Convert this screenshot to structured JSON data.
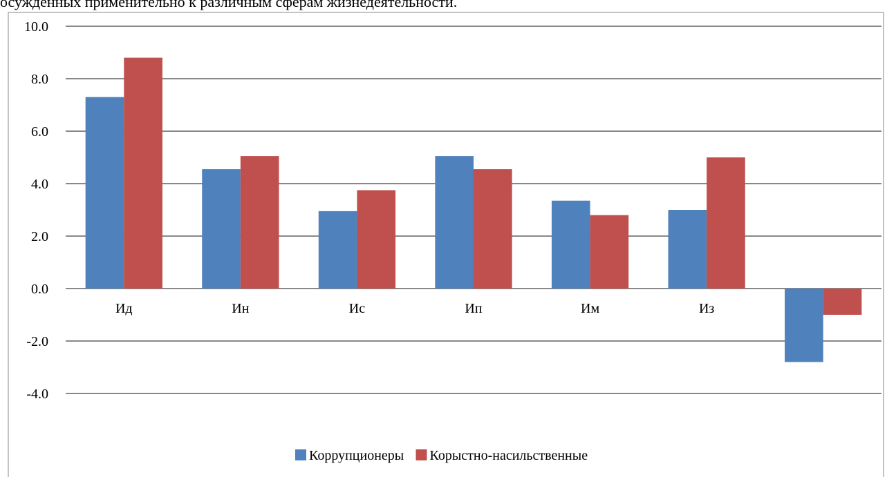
{
  "caption": "осужденных применительно к различным сферам жизнедеятельности.",
  "chart_data": {
    "type": "bar",
    "categories": [
      "Ид",
      "Ин",
      "Ис",
      "Ип",
      "Им",
      "Из",
      null
    ],
    "series": [
      {
        "name": "Коррупционеры",
        "color": "#4f81bd",
        "values": [
          7.3,
          4.55,
          2.95,
          5.05,
          3.35,
          3.0,
          -2.8
        ]
      },
      {
        "name": "Корыстно-насильственные",
        "color": "#c0504d",
        "values": [
          8.8,
          5.05,
          3.75,
          4.55,
          2.8,
          5.0,
          -1.0
        ]
      }
    ],
    "ylim": [
      -4,
      10
    ],
    "yticks": [
      {
        "value": -4,
        "label": "-4.0"
      },
      {
        "value": -2,
        "label": "-2.0"
      },
      {
        "value": 0,
        "label": "0.0"
      },
      {
        "value": 2,
        "label": "2.0"
      },
      {
        "value": 4,
        "label": "4.0"
      },
      {
        "value": 6,
        "label": "6.0"
      },
      {
        "value": 8,
        "label": "8.0"
      },
      {
        "value": 10,
        "label": "10.0"
      }
    ],
    "grid": true,
    "legend": "bottom"
  }
}
